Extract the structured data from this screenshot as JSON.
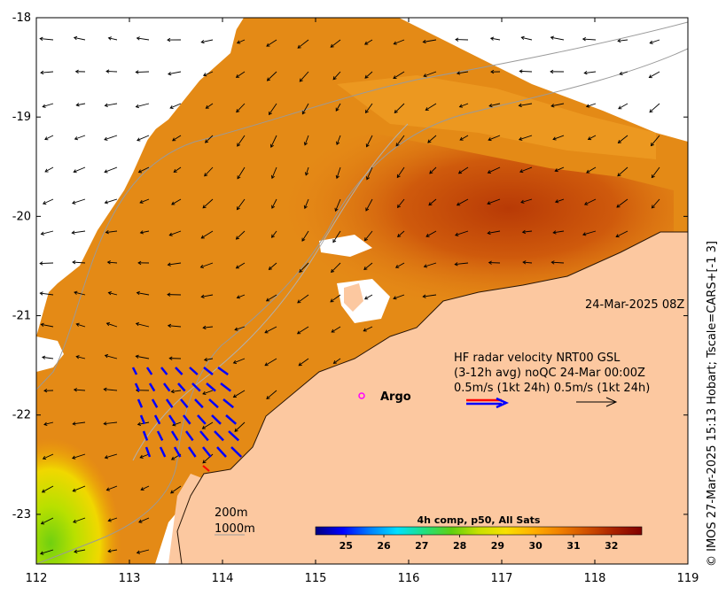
{
  "timestamp": "24-Mar-2025 08Z",
  "radar": {
    "line1": "HF radar velocity  NRT00 GSL",
    "line2": "(3-12h avg) noQC 24-Mar 00:00Z",
    "line3": "0.5m/s (1kt 24h)  0.5m/s (1kt 24h)"
  },
  "argo_label": "Argo",
  "depth_labels": [
    "200m",
    "1000m"
  ],
  "credit": "© IMOS 27-Mar-2025 15:13 Hobart; Tscale=CARS+[-1 3]",
  "colorbar": {
    "title": "4h comp, p50, All Sats",
    "min": 24.2,
    "max": 32.8,
    "ticks": [
      25,
      26,
      27,
      28,
      29,
      30,
      31,
      32
    ],
    "stops": [
      "#00007f",
      "#0000ff",
      "#0080ff",
      "#00e0ff",
      "#20e080",
      "#60d010",
      "#c8e000",
      "#f8e000",
      "#ffb000",
      "#f08000",
      "#d05000",
      "#a82000",
      "#800000"
    ]
  },
  "axes": {
    "lon_ticks": [
      112,
      113,
      114,
      115,
      116,
      117,
      118,
      119
    ],
    "lat_ticks": [
      -18,
      -19,
      -20,
      -21,
      -22,
      -23
    ],
    "lon_range": [
      112,
      119
    ],
    "lat_range": [
      -23.5,
      -18
    ]
  },
  "colors": {
    "land": "#fcc8a0",
    "radar_arrow": "#0000ff",
    "legend_red": "#ff0000",
    "argo": "#ff00ff",
    "bathy": "#9a9a9a"
  }
}
